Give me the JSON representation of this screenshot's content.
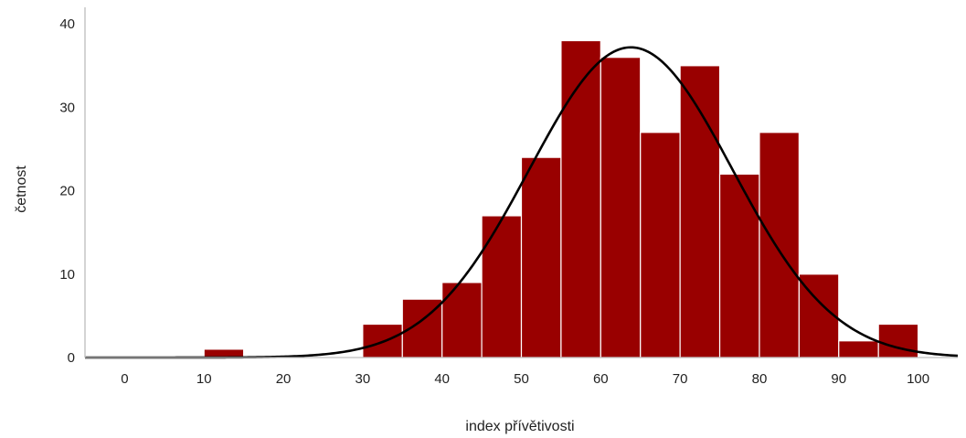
{
  "chart_data": {
    "type": "bar",
    "subtype": "histogram",
    "xlabel": "index přívětivosti",
    "ylabel": "četnost",
    "xlim": [
      -5,
      105
    ],
    "ylim": [
      0,
      42
    ],
    "x_ticks": [
      0,
      10,
      20,
      30,
      40,
      50,
      60,
      70,
      80,
      90,
      100
    ],
    "y_ticks": [
      0,
      10,
      20,
      30,
      40
    ],
    "bin_width": 5,
    "bins": [
      {
        "start": 10,
        "end": 15,
        "count": 1
      },
      {
        "start": 30,
        "end": 35,
        "count": 4
      },
      {
        "start": 35,
        "end": 40,
        "count": 7
      },
      {
        "start": 40,
        "end": 45,
        "count": 9
      },
      {
        "start": 45,
        "end": 50,
        "count": 17
      },
      {
        "start": 50,
        "end": 55,
        "count": 24
      },
      {
        "start": 55,
        "end": 60,
        "count": 38
      },
      {
        "start": 60,
        "end": 65,
        "count": 36
      },
      {
        "start": 65,
        "end": 70,
        "count": 27
      },
      {
        "start": 70,
        "end": 75,
        "count": 35
      },
      {
        "start": 75,
        "end": 80,
        "count": 22
      },
      {
        "start": 80,
        "end": 85,
        "count": 27
      },
      {
        "start": 85,
        "end": 90,
        "count": 10
      },
      {
        "start": 90,
        "end": 95,
        "count": 2
      },
      {
        "start": 95,
        "end": 100,
        "count": 4
      }
    ],
    "normal_curve": {
      "mean": 63.8,
      "sd": 12.8,
      "peak": 37.2
    },
    "grid": false,
    "legend": "none",
    "colors": {
      "bar_fill": "#990000",
      "bar_stroke": "#ffffff",
      "curve": "#000000",
      "axis": "#bdbdbd"
    }
  }
}
